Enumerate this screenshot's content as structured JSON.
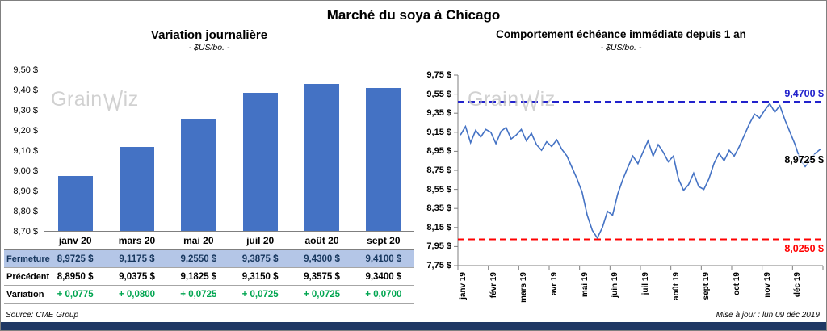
{
  "page": {
    "title": "Marché du soya à Chicago",
    "source": "Source: CME Group",
    "updated": "Mise à jour : lun 09 déc 2019",
    "watermark": {
      "pre": "Grain",
      "post": "iz"
    }
  },
  "colors": {
    "bar": "#4472C4",
    "line": "#4472C4",
    "high": "#2222CC",
    "low": "#FF0000",
    "green": "#00A550",
    "highlight": "#B4C6E7",
    "navy": "#17375E",
    "footer": "#1F3864",
    "axis": "#7F7F7F",
    "watermark": "#C6C6C6"
  },
  "chart_data": [
    {
      "type": "bar",
      "title": "Variation journalière",
      "subtitle": "- $US/bo. -",
      "categories": [
        "janv 20",
        "mars 20",
        "mai 20",
        "juil 20",
        "août 20",
        "sept 20"
      ],
      "values": [
        8.9725,
        9.1175,
        9.255,
        9.3875,
        9.43,
        9.41
      ],
      "ylim": [
        8.7,
        9.5
      ],
      "ytick_labels": [
        "9,50 $",
        "9,40 $",
        "9,30 $",
        "9,20 $",
        "9,10 $",
        "9,00 $",
        "8,90 $",
        "8,80 $",
        "8,70 $"
      ],
      "grid": false,
      "legend": false
    },
    {
      "type": "line",
      "title": "Comportement échéance immédiate depuis 1 an",
      "subtitle": "- $US/bo. -",
      "x_labels": [
        "janv 19",
        "févr 19",
        "mars 19",
        "avr 19",
        "mai 19",
        "juin 19",
        "juil 19",
        "août 19",
        "sept 19",
        "oct 19",
        "nov 19",
        "déc 19"
      ],
      "ylim": [
        7.75,
        9.75
      ],
      "ytick_labels": [
        "9,75 $",
        "9,55 $",
        "9,35 $",
        "9,15 $",
        "8,95 $",
        "8,75 $",
        "8,55 $",
        "8,35 $",
        "8,15 $",
        "7,95 $",
        "7,75 $"
      ],
      "values": [
        9.12,
        9.21,
        9.04,
        9.17,
        9.1,
        9.18,
        9.15,
        9.03,
        9.16,
        9.2,
        9.08,
        9.12,
        9.18,
        9.06,
        9.14,
        9.02,
        8.96,
        9.05,
        9.0,
        9.07,
        8.97,
        8.9,
        8.78,
        8.66,
        8.52,
        8.28,
        8.12,
        8.04,
        8.15,
        8.32,
        8.28,
        8.5,
        8.65,
        8.78,
        8.9,
        8.82,
        8.94,
        9.06,
        8.9,
        9.02,
        8.94,
        8.84,
        8.9,
        8.66,
        8.54,
        8.6,
        8.72,
        8.58,
        8.55,
        8.66,
        8.82,
        8.93,
        8.85,
        8.96,
        8.9,
        9.0,
        9.12,
        9.24,
        9.34,
        9.3,
        9.38,
        9.45,
        9.36,
        9.43,
        9.28,
        9.15,
        9.02,
        8.86,
        8.79,
        8.86,
        8.93,
        8.9725
      ],
      "annotations": {
        "high": {
          "value": 9.47,
          "label": "9,4700 $"
        },
        "last": {
          "value": 8.9725,
          "label": "8,9725 $"
        },
        "low": {
          "value": 8.025,
          "label": "8,0250 $"
        }
      },
      "grid": false,
      "legend": false
    }
  ],
  "table": {
    "rows": [
      {
        "label": "Fermeture",
        "values": [
          "8,9725  $",
          "9,1175  $",
          "9,2550  $",
          "9,3875  $",
          "9,4300  $",
          "9,4100  $"
        ]
      },
      {
        "label": "Précédent",
        "values": [
          "8,8950  $",
          "9,0375  $",
          "9,1825  $",
          "9,3150  $",
          "9,3575  $",
          "9,3400  $"
        ]
      },
      {
        "label": "Variation",
        "values": [
          "+ 0,0775",
          "+ 0,0800",
          "+ 0,0725",
          "+ 0,0725",
          "+ 0,0725",
          "+ 0,0700"
        ]
      }
    ]
  }
}
